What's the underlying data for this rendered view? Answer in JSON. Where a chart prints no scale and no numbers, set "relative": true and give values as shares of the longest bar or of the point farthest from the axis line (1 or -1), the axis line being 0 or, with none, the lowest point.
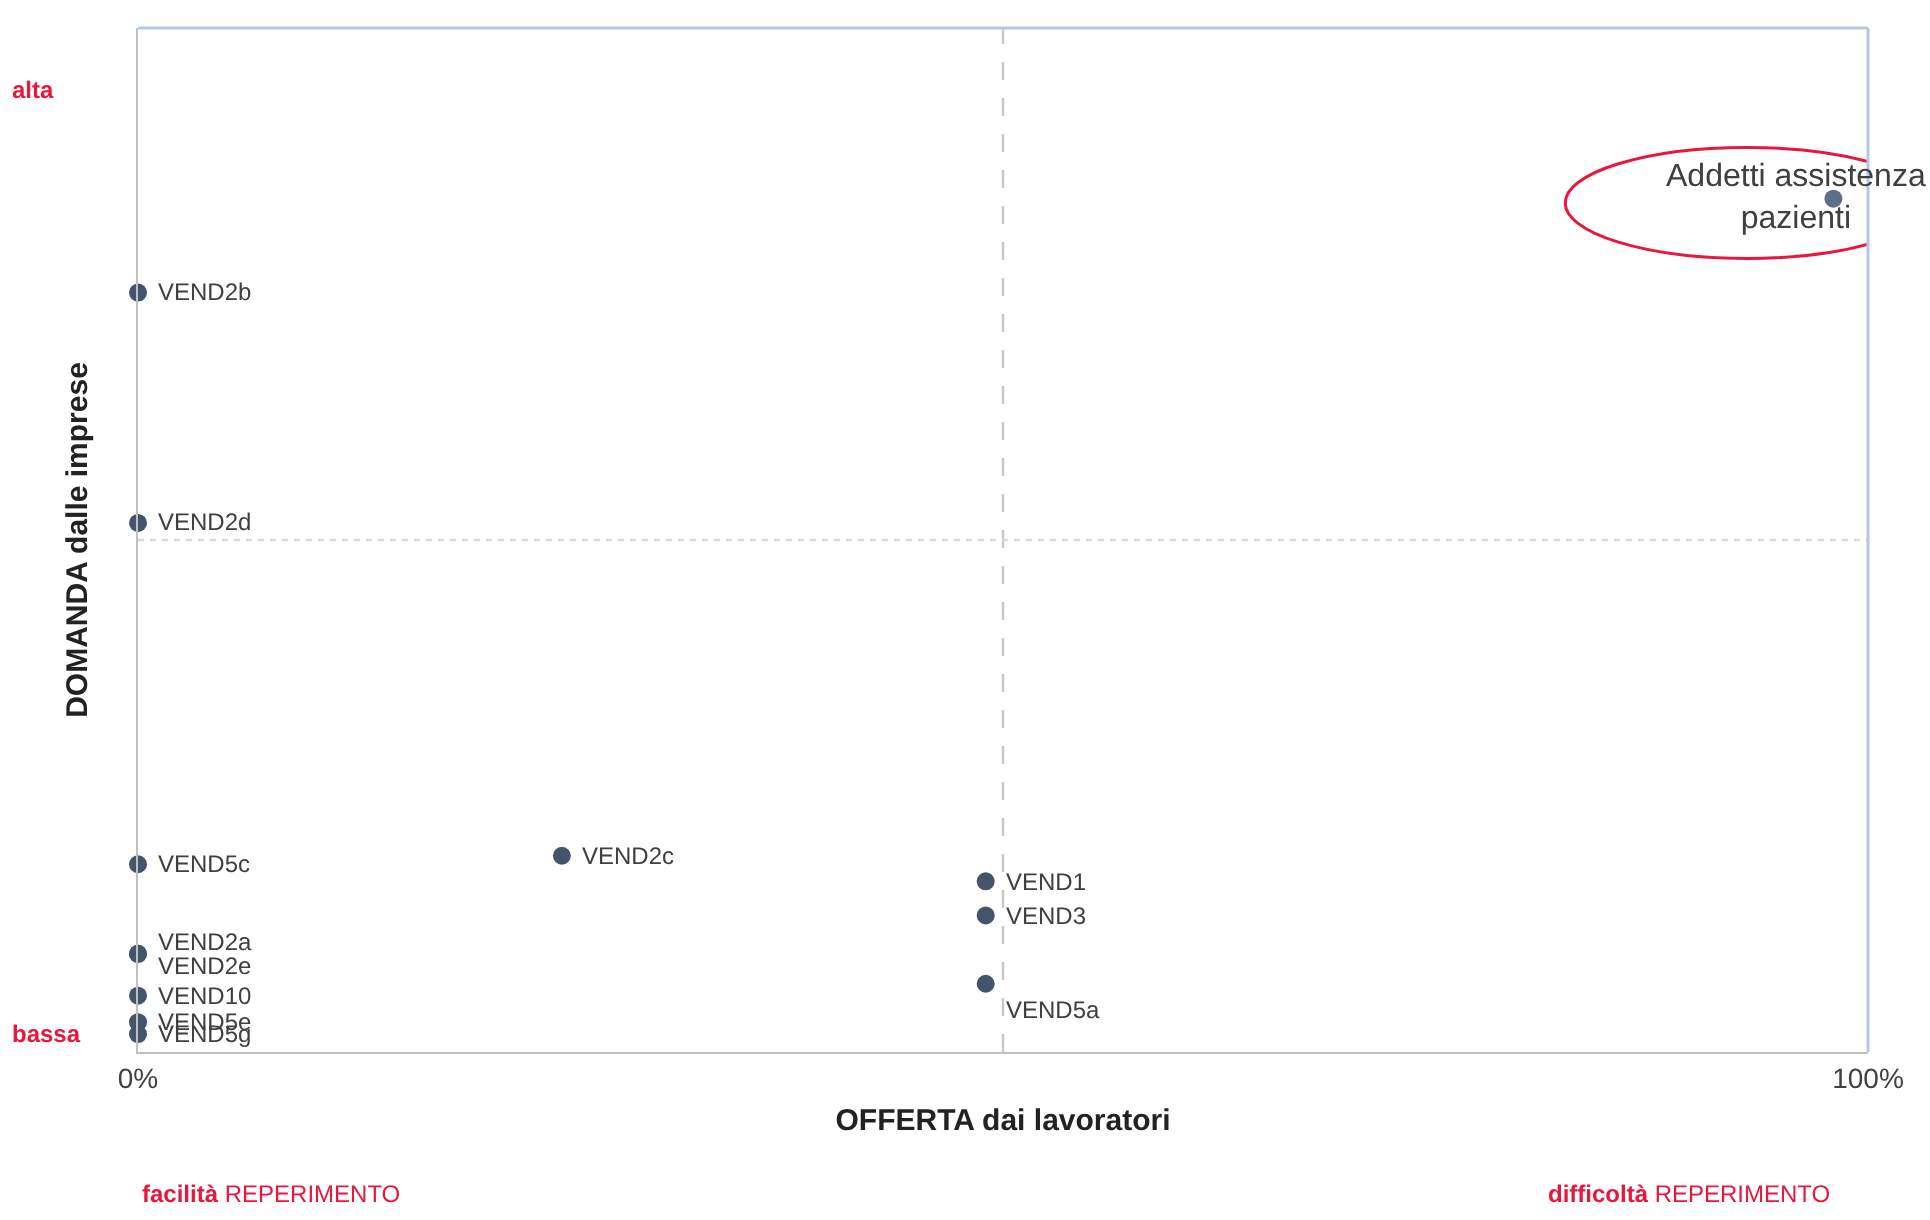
{
  "chart_data": {
    "type": "scatter",
    "xlabel": "OFFERTA dai lavoratori",
    "ylabel": "DOMANDA dalle imprese",
    "xlim": [
      0,
      100
    ],
    "xticks": [
      {
        "value": 0,
        "label": "0%"
      },
      {
        "value": 100,
        "label": "100%"
      }
    ],
    "relative": true,
    "grid": false,
    "legend": false,
    "marker": "circle",
    "ref_lines": [
      {
        "axis": "x",
        "value": 50,
        "color": "#c8c8c8",
        "line_style": "dashed"
      },
      {
        "axis": "y",
        "value": 0.6,
        "color": "#d9d9d9",
        "line_style": "dotted"
      }
    ],
    "series": [
      {
        "x": [
          0,
          0,
          0,
          24.5,
          49,
          49,
          49,
          0,
          0,
          0,
          0,
          0,
          98
        ],
        "values": [
          0.89,
          0.62,
          0.22,
          0.23,
          0.2,
          0.16,
          0.08,
          0.115,
          0.115,
          0.066,
          0.035,
          0.021,
          1
        ],
        "colors": [
          "#44546a",
          "#44546a",
          "#44546a",
          "#44546a",
          "#44546a",
          "#44546a",
          "#44546a",
          "#44546a",
          "#44546a",
          "#44546a",
          "#44546a",
          "#44546a",
          "#5f6f85"
        ]
      }
    ],
    "annotations": [
      "alta",
      "bassa",
      "facilità REPERIMENTO",
      "difficoltà REPERIMENTO",
      {
        "text": "VEND2b",
        "x": 0,
        "y": 0.89
      },
      {
        "text": "VEND2d",
        "x": 0,
        "y": 0.62
      },
      {
        "text": "VEND5c",
        "x": 0,
        "y": 0.22
      },
      {
        "text": "VEND2c",
        "x": 24.5,
        "y": 0.23
      },
      {
        "text": "VEND1",
        "x": 49,
        "y": 0.2
      },
      {
        "text": "VEND3",
        "x": 49,
        "y": 0.16
      },
      {
        "text": "VEND5a",
        "x": 49,
        "y": 0.08
      },
      {
        "text": "VEND2a",
        "x": 0,
        "y": 0.115
      },
      {
        "text": "VEND2e",
        "x": 0,
        "y": 0.115
      },
      {
        "text": "VEND10",
        "x": 0,
        "y": 0.066
      },
      {
        "text": "VEND5e",
        "x": 0,
        "y": 0.035
      },
      {
        "text": "VEND5g",
        "x": 0,
        "y": 0.021
      },
      {
        "text": "Addetti assistenza pazienti",
        "x": 98,
        "y": 1
      }
    ]
  }
}
